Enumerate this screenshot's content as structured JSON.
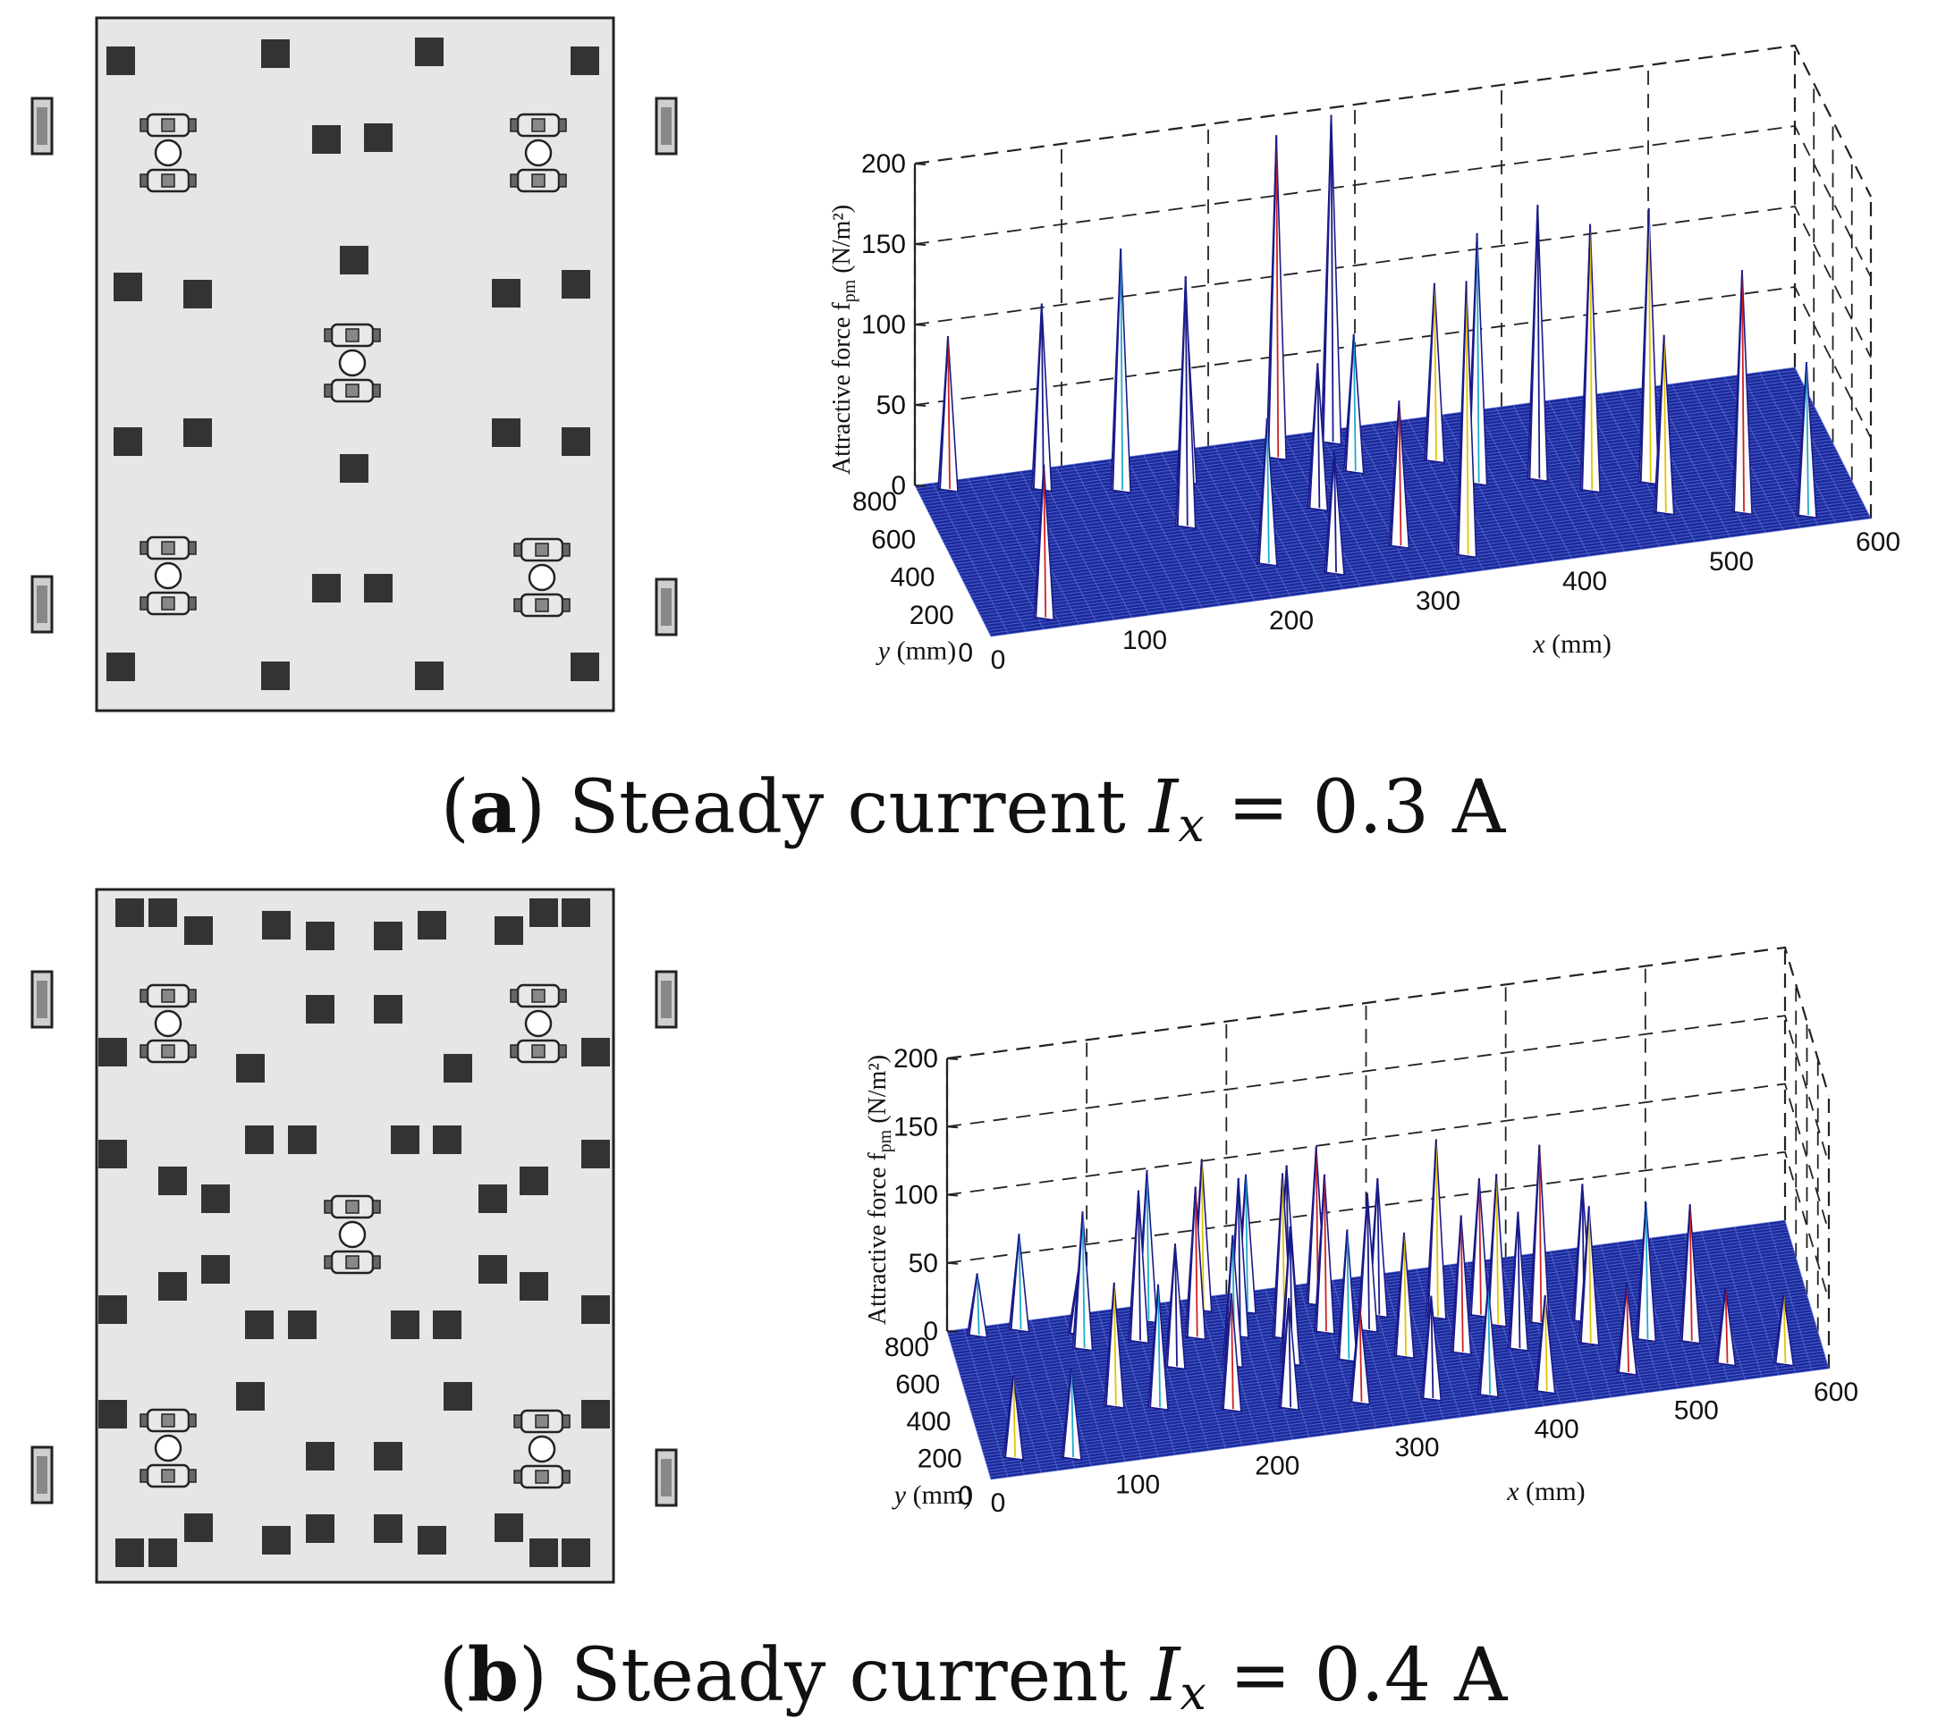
{
  "figure": {
    "captions": [
      {
        "label": "a",
        "text_before": "Steady current ",
        "symbol": "I",
        "subscript": "x",
        "text_after": " = 0.3 A"
      },
      {
        "label": "b",
        "text_before": "Steady current ",
        "symbol": "I",
        "subscript": "x",
        "text_after": " = 0.4 A"
      }
    ]
  },
  "colors": {
    "floor": "#1a2a9c",
    "floor_grid": "#6a7ce0",
    "panel_bg": "#e6e6e6",
    "block": "#333333",
    "spike": "#ffffff",
    "spike_edge": "#1a1a8a"
  },
  "chart_data": [
    {
      "type": "3d-surface",
      "panel": "a",
      "zlabel": "Attractive  force fpm (N/m²)",
      "zlabel_main": "Attractive  force f",
      "zlabel_sub": "pm",
      "zlabel_unit": " (N/m²)",
      "xlabel_var": "x",
      "xlabel_unit": " (mm)",
      "ylabel_var": "y",
      "ylabel_unit": " (mm)",
      "xlim": [
        0,
        600
      ],
      "ylim": [
        0,
        800
      ],
      "zlim": [
        0,
        200
      ],
      "xticks": [
        "0",
        "100",
        "200",
        "300",
        "400",
        "500",
        "600"
      ],
      "yticks": [
        "0",
        "200",
        "400",
        "600",
        "800"
      ],
      "zticks": [
        "0",
        "50",
        "100",
        "150",
        "200"
      ],
      "peaks": [
        {
          "x": 20,
          "y": 760,
          "z": 95
        },
        {
          "x": 80,
          "y": 700,
          "z": 115
        },
        {
          "x": 130,
          "y": 640,
          "z": 150
        },
        {
          "x": 175,
          "y": 640,
          "z": 105
        },
        {
          "x": 240,
          "y": 700,
          "z": 200
        },
        {
          "x": 280,
          "y": 740,
          "z": 203
        },
        {
          "x": 285,
          "y": 580,
          "z": 85
        },
        {
          "x": 340,
          "y": 580,
          "z": 110
        },
        {
          "x": 160,
          "y": 420,
          "z": 155
        },
        {
          "x": 250,
          "y": 420,
          "z": 90
        },
        {
          "x": 360,
          "y": 440,
          "z": 155
        },
        {
          "x": 400,
          "y": 420,
          "z": 170
        },
        {
          "x": 430,
          "y": 330,
          "z": 165
        },
        {
          "x": 470,
          "y": 330,
          "z": 170
        },
        {
          "x": 200,
          "y": 180,
          "z": 90
        },
        {
          "x": 240,
          "y": 90,
          "z": 75
        },
        {
          "x": 290,
          "y": 180,
          "z": 90
        },
        {
          "x": 330,
          "y": 90,
          "z": 170
        },
        {
          "x": 470,
          "y": 170,
          "z": 110
        },
        {
          "x": 520,
          "y": 120,
          "z": 150
        },
        {
          "x": 560,
          "y": 60,
          "z": 95
        },
        {
          "x": 40,
          "y": 60,
          "z": 95
        }
      ]
    },
    {
      "type": "3d-surface",
      "panel": "b",
      "zlabel": "Attractive  force fpm (N/m²)",
      "zlabel_main": "Attractive  force f",
      "zlabel_sub": "pm",
      "zlabel_unit": " (N/m²)",
      "xlabel_var": "x",
      "xlabel_unit": " (mm)",
      "ylabel_var": "y",
      "ylabel_unit": " (mm)",
      "xlim": [
        0,
        600
      ],
      "ylim": [
        0,
        800
      ],
      "zlim": [
        0,
        200
      ],
      "xticks": [
        "0",
        "100",
        "200",
        "300",
        "400",
        "500",
        "600"
      ],
      "yticks": [
        "0",
        "200",
        "400",
        "600",
        "800"
      ],
      "zticks": [
        "0",
        "50",
        "100",
        "150",
        "200"
      ],
      "peaks": [
        {
          "x": 20,
          "y": 760,
          "z": 45
        },
        {
          "x": 50,
          "y": 760,
          "z": 70
        },
        {
          "x": 90,
          "y": 700,
          "z": 45
        },
        {
          "x": 140,
          "y": 720,
          "z": 110
        },
        {
          "x": 180,
          "y": 740,
          "z": 110
        },
        {
          "x": 210,
          "y": 700,
          "z": 100
        },
        {
          "x": 240,
          "y": 720,
          "z": 100
        },
        {
          "x": 260,
          "y": 690,
          "z": 115
        },
        {
          "x": 90,
          "y": 620,
          "z": 100
        },
        {
          "x": 130,
          "y": 620,
          "z": 110
        },
        {
          "x": 170,
          "y": 600,
          "z": 110
        },
        {
          "x": 200,
          "y": 580,
          "z": 115
        },
        {
          "x": 230,
          "y": 540,
          "z": 120
        },
        {
          "x": 260,
          "y": 540,
          "z": 115
        },
        {
          "x": 290,
          "y": 520,
          "z": 100
        },
        {
          "x": 300,
          "y": 590,
          "z": 100
        },
        {
          "x": 340,
          "y": 540,
          "z": 130
        },
        {
          "x": 370,
          "y": 520,
          "z": 100
        },
        {
          "x": 380,
          "y": 460,
          "z": 110
        },
        {
          "x": 410,
          "y": 440,
          "z": 130
        },
        {
          "x": 440,
          "y": 420,
          "z": 100
        },
        {
          "x": 150,
          "y": 460,
          "z": 90
        },
        {
          "x": 190,
          "y": 430,
          "z": 95
        },
        {
          "x": 230,
          "y": 400,
          "z": 100
        },
        {
          "x": 270,
          "y": 380,
          "z": 95
        },
        {
          "x": 310,
          "y": 360,
          "z": 90
        },
        {
          "x": 350,
          "y": 340,
          "z": 100
        },
        {
          "x": 390,
          "y": 320,
          "z": 100
        },
        {
          "x": 440,
          "y": 300,
          "z": 100
        },
        {
          "x": 480,
          "y": 280,
          "z": 100
        },
        {
          "x": 510,
          "y": 240,
          "z": 100
        },
        {
          "x": 100,
          "y": 300,
          "z": 90
        },
        {
          "x": 130,
          "y": 260,
          "z": 90
        },
        {
          "x": 180,
          "y": 200,
          "z": 85
        },
        {
          "x": 220,
          "y": 170,
          "z": 80
        },
        {
          "x": 270,
          "y": 150,
          "z": 70
        },
        {
          "x": 320,
          "y": 120,
          "z": 75
        },
        {
          "x": 360,
          "y": 100,
          "z": 80
        },
        {
          "x": 400,
          "y": 80,
          "z": 70
        },
        {
          "x": 460,
          "y": 120,
          "z": 65
        },
        {
          "x": 530,
          "y": 100,
          "z": 55
        },
        {
          "x": 570,
          "y": 60,
          "z": 50
        },
        {
          "x": 20,
          "y": 100,
          "z": 60
        },
        {
          "x": 60,
          "y": 60,
          "z": 65
        }
      ]
    }
  ]
}
